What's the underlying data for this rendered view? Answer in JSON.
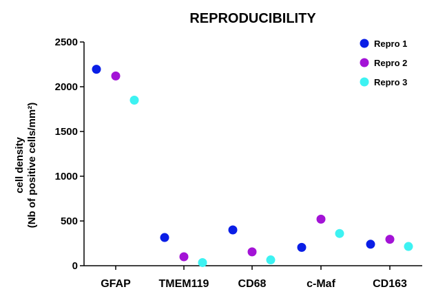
{
  "chart_data": {
    "type": "scatter",
    "title": "REPRODUCIBILITY",
    "ylabel_line1": "cell density",
    "ylabel_line2": "(Nb of positive cells/mm²)",
    "xlabel": "",
    "ylim": [
      0,
      2500
    ],
    "yticks": [
      0,
      500,
      1000,
      1500,
      2000,
      2500
    ],
    "categories": [
      "GFAP",
      "TMEM119",
      "CD68",
      "c-Maf",
      "CD163"
    ],
    "legend_position": "top-right",
    "series": [
      {
        "name": "Repro 1",
        "color": "#0a1ee6",
        "values": [
          2195,
          315,
          400,
          205,
          240
        ]
      },
      {
        "name": "Repro 2",
        "color": "#a313d6",
        "values": [
          2120,
          100,
          155,
          520,
          295
        ]
      },
      {
        "name": "Repro 3",
        "color": "#3df2f2",
        "values": [
          1850,
          35,
          65,
          360,
          215
        ]
      }
    ]
  }
}
